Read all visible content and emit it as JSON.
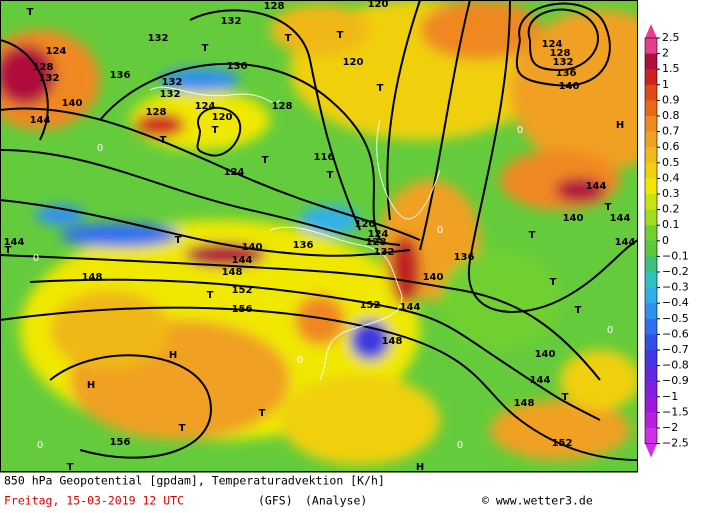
{
  "map": {
    "labels": [
      "T",
      "T",
      "T",
      "T",
      "T",
      "T",
      "T",
      "T",
      "T",
      "T",
      "T",
      "T",
      "T",
      "T",
      "T",
      "T",
      "T",
      "T",
      "T",
      "T",
      "H",
      "H",
      "H",
      "H",
      "124",
      "128",
      "132",
      "140",
      "144",
      "132",
      "132",
      "136",
      "136",
      "128",
      "120",
      "120",
      "132",
      "132",
      "124",
      "128",
      "120",
      "128",
      "124",
      "116",
      "136",
      "120",
      "124",
      "128",
      "132",
      "140",
      "144",
      "148",
      "152",
      "156",
      "148",
      "144",
      "136",
      "140",
      "144",
      "152",
      "148",
      "140",
      "144",
      "148",
      "152",
      "156",
      "124",
      "128",
      "132",
      "136",
      "140",
      "144",
      "140",
      "144",
      "144",
      "0",
      "0",
      "0",
      "0",
      "0",
      "0",
      "0",
      "0"
    ]
  },
  "colorbar": {
    "labels": [
      "2.5",
      "2",
      "1.5",
      "1",
      "0.9",
      "0.8",
      "0.7",
      "0.6",
      "0.5",
      "0.4",
      "0.3",
      "0.2",
      "0.1",
      "0",
      "−0.1",
      "−0.2",
      "−0.3",
      "−0.4",
      "−0.5",
      "−0.6",
      "−0.7",
      "−0.8",
      "−0.9",
      "−1",
      "−1.5",
      "−2",
      "−2.5"
    ],
    "colors": [
      "#e83c8c",
      "#b0103c",
      "#d02020",
      "#e04818",
      "#e86818",
      "#f08820",
      "#f0a020",
      "#f0b818",
      "#f0d010",
      "#f0e800",
      "#c8e410",
      "#a0dc20",
      "#70d030",
      "#5cc840",
      "#40c080",
      "#30c0c0",
      "#30b0e8",
      "#3090f0",
      "#3070f0",
      "#3050e8",
      "#4038e0",
      "#6028e0",
      "#8020e0",
      "#a018e0",
      "#b820e0",
      "#d030e8"
    ]
  },
  "footer": {
    "line1": "850 hPa Geopotential [gpdam], Temperaturadvektion [K/h]",
    "date": "Freitag, 15-03-2019  12 UTC",
    "model": "(GFS)",
    "analysis": "(Analyse)",
    "credit": "© www.wetter3.de"
  }
}
